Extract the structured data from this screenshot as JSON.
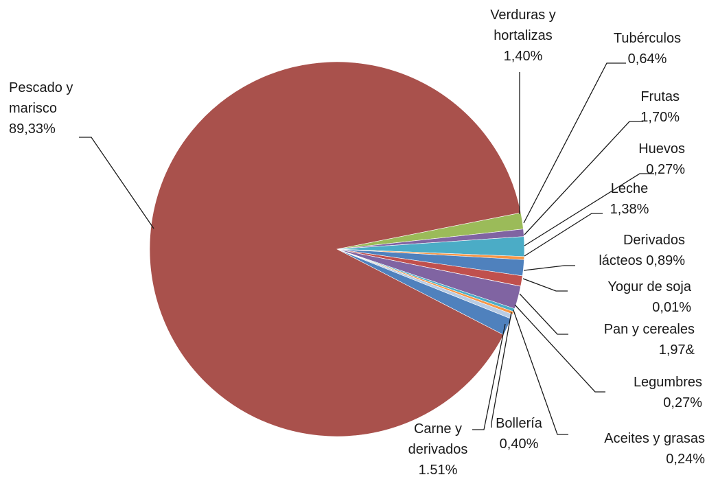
{
  "chart_data": {
    "type": "pie",
    "title": "",
    "legend": "none",
    "slices": [
      {
        "key": "verduras",
        "lines": [
          "Verduras y",
          "hortalizas",
          "1,40%"
        ],
        "value": 1.4,
        "color": "#9bbb59"
      },
      {
        "key": "tuberculos",
        "lines": [
          "Tubérculos",
          "0,64%"
        ],
        "value": 0.64,
        "color": "#8064a2"
      },
      {
        "key": "frutas",
        "lines": [
          "Frutas",
          "1,70%"
        ],
        "value": 1.7,
        "color": "#4bacc6"
      },
      {
        "key": "huevos",
        "lines": [
          "Huevos",
          "0,27%"
        ],
        "value": 0.27,
        "color": "#f79646"
      },
      {
        "key": "leche",
        "lines": [
          "Leche",
          "1,38%"
        ],
        "value": 1.38,
        "color": "#4f81bd"
      },
      {
        "key": "derivados-lacteos",
        "lines": [
          "Derivados",
          "lácteos 0,89%"
        ],
        "value": 0.89,
        "color": "#c0504d"
      },
      {
        "key": "yogur-soja",
        "lines": [
          "Yogur de soja",
          "0,01%"
        ],
        "value": 0.01,
        "color": "#9bbb59"
      },
      {
        "key": "pan-cereales",
        "lines": [
          "Pan y cereales",
          "1,97&"
        ],
        "value": 1.97,
        "color": "#8064a2"
      },
      {
        "key": "legumbres",
        "lines": [
          "Legumbres",
          "0,27%"
        ],
        "value": 0.27,
        "color": "#4bacc6"
      },
      {
        "key": "aceites-grasas",
        "lines": [
          "Aceites y grasas",
          "0,24%"
        ],
        "value": 0.24,
        "color": "#f79646"
      },
      {
        "key": "bolleria",
        "lines": [
          "Bollería",
          "0,40%"
        ],
        "value": 0.4,
        "color": "#b8cce4"
      },
      {
        "key": "carne-derivados",
        "lines": [
          "Carne y",
          "derivados",
          "1.51%"
        ],
        "value": 1.51,
        "color": "#4f81bd"
      },
      {
        "key": "pescado-marisco",
        "lines": [
          "Pescado y",
          "marisco",
          "89,33%"
        ],
        "value": 89.33,
        "color": "#a9514c"
      }
    ]
  }
}
